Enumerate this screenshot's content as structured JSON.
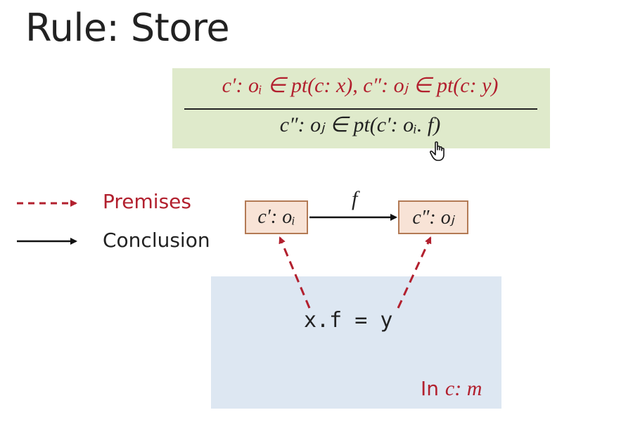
{
  "title": "Rule: Store",
  "rule": {
    "premises": "c′: oᵢ ∈ pt(c: x), c″: oⱼ ∈ pt(c: y)",
    "conclusion": "c″: oⱼ ∈ pt(c′: oᵢ. f)"
  },
  "legend": {
    "premises_label": "Premises",
    "conclusion_label": "Conclusion"
  },
  "nodes": {
    "left": "c′: oᵢ",
    "right": "c″: oⱼ"
  },
  "edge_label": "f",
  "statement": "x.f = y",
  "context_label": {
    "prefix": "In ",
    "context": "c: m"
  },
  "colors": {
    "premise": "#b2202e",
    "conclusion": "#222222",
    "rule_bg": "#dfeacb",
    "node_bg": "#f8e3d6",
    "node_border": "#b37a55",
    "context_bg": "#dde7f2"
  }
}
